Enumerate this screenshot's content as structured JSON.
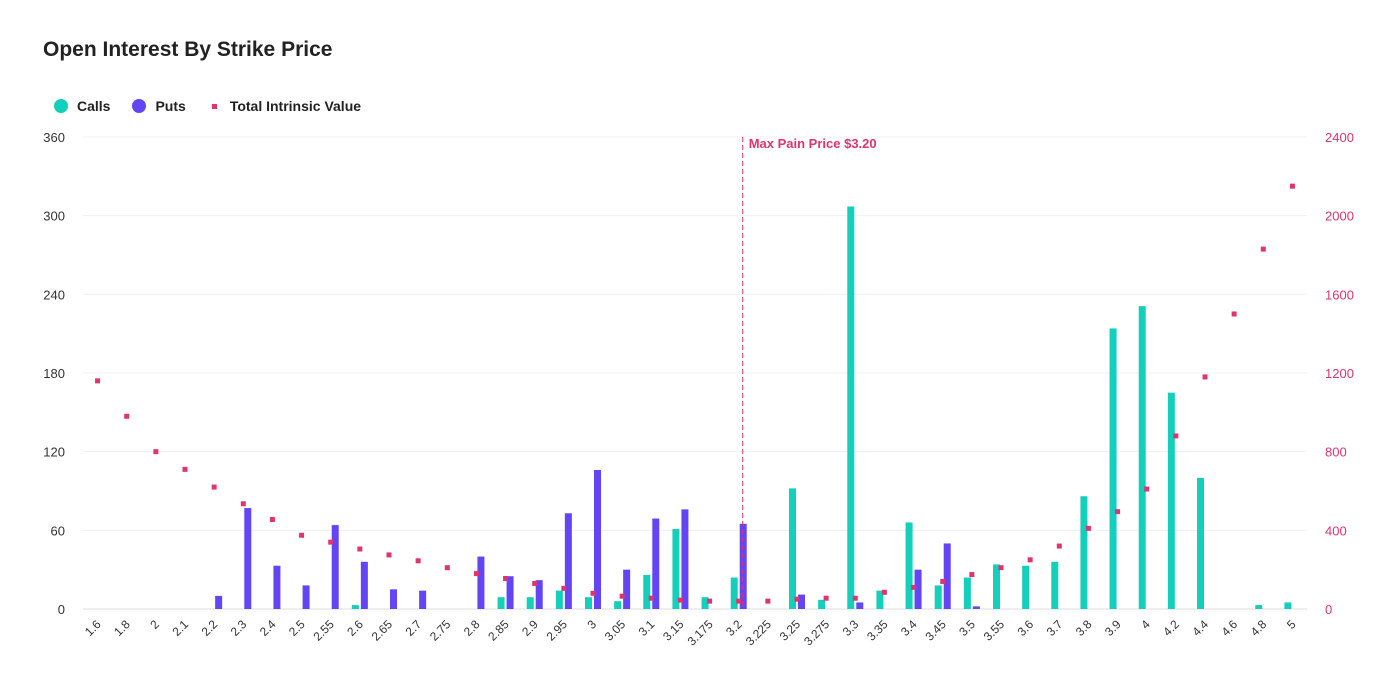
{
  "chart_data": {
    "type": "bar",
    "title": "Open Interest By Strike Price",
    "categories": [
      "1.6",
      "1.8",
      "2",
      "2.1",
      "2.2",
      "2.3",
      "2.4",
      "2.5",
      "2.55",
      "2.6",
      "2.65",
      "2.7",
      "2.75",
      "2.8",
      "2.85",
      "2.9",
      "2.95",
      "3",
      "3.05",
      "3.1",
      "3.15",
      "3.175",
      "3.2",
      "3.225",
      "3.25",
      "3.275",
      "3.3",
      "3.35",
      "3.4",
      "3.45",
      "3.5",
      "3.55",
      "3.6",
      "3.7",
      "3.8",
      "3.9",
      "4",
      "4.2",
      "4.4",
      "4.6",
      "4.8",
      "5"
    ],
    "series": [
      {
        "name": "Calls",
        "color": "#14cfbb",
        "values": [
          0,
          0,
          0,
          0,
          0,
          0,
          0,
          0,
          0,
          3,
          0,
          0,
          0,
          0,
          9,
          9,
          14,
          9,
          6,
          26,
          61,
          9,
          24,
          0,
          92,
          7,
          307,
          14,
          66,
          18,
          24,
          34,
          33,
          36,
          86,
          214,
          231,
          165,
          100,
          0,
          3,
          5
        ]
      },
      {
        "name": "Puts",
        "color": "#6445f5",
        "values": [
          0,
          0,
          0,
          0,
          10,
          77,
          33,
          18,
          64,
          36,
          15,
          14,
          0,
          40,
          25,
          22,
          73,
          106,
          30,
          69,
          76,
          0,
          65,
          0,
          11,
          0,
          5,
          0,
          30,
          50,
          2,
          0,
          0,
          0,
          0,
          0,
          0,
          0,
          0,
          0,
          0,
          0
        ]
      },
      {
        "name": "Total Intrinsic Value",
        "color": "#e0336f",
        "axis": "right",
        "values": [
          1160,
          980,
          800,
          710,
          620,
          535,
          455,
          375,
          340,
          305,
          275,
          245,
          210,
          180,
          155,
          130,
          105,
          80,
          65,
          55,
          45,
          40,
          40,
          40,
          50,
          55,
          55,
          85,
          110,
          140,
          175,
          210,
          250,
          320,
          410,
          495,
          610,
          880,
          1180,
          1500,
          1830,
          2150
        ]
      }
    ],
    "y_left": {
      "ylim": [
        0,
        360
      ],
      "ticks": [
        "360",
        "300",
        "240",
        "180",
        "120",
        "60",
        "0"
      ]
    },
    "y_right": {
      "ylim": [
        0,
        2400
      ],
      "ticks": [
        "2400",
        "2000",
        "1600",
        "1200",
        "800",
        "400",
        "0"
      ],
      "color": "#e0336f"
    },
    "annotation": {
      "label": "Max Pain Price $3.20",
      "category": "3.2",
      "color": "#e0336f"
    },
    "legend": {
      "placement": "top-left"
    },
    "grid": true
  }
}
